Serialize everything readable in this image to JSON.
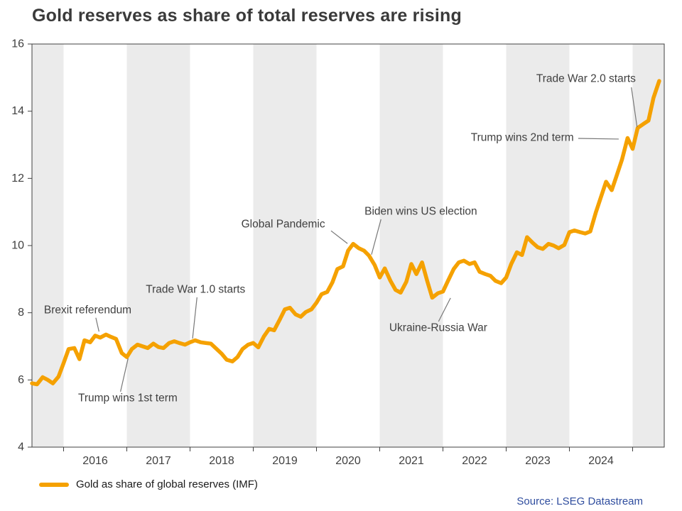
{
  "title": "Gold reserves as share of total reserves are rising",
  "legend": {
    "label": "Gold as share of global reserves (IMF)"
  },
  "source": "Source: LSEG Datastream",
  "colors": {
    "line": "#F5A100",
    "band": "#EBEBEB",
    "axis": "#404040",
    "annotation": "#404040",
    "annotation_line": "#777777",
    "source_text": "#2F4D9E",
    "title": "#3A3A3A",
    "background": "#FFFFFF"
  },
  "chart_data": {
    "type": "line",
    "title": "Gold reserves as share of total reserves are rising",
    "xlabel": "",
    "ylabel": "",
    "xlim": [
      2015.5,
      2025.5
    ],
    "ylim": [
      4,
      16
    ],
    "yticks": [
      4,
      6,
      8,
      10,
      12,
      14,
      16
    ],
    "xticks": [
      2016,
      2017,
      2018,
      2019,
      2020,
      2021,
      2022,
      2023,
      2024
    ],
    "grid": "off",
    "shaded_year_bands": "odd years shaded light gray",
    "legend_position": "bottom-left",
    "series": [
      {
        "name": "Gold as share of global reserves (IMF)",
        "color": "#F5A100",
        "points": [
          [
            2015.5,
            5.9
          ],
          [
            2015.58,
            5.87
          ],
          [
            2015.67,
            6.08
          ],
          [
            2015.75,
            6.0
          ],
          [
            2015.83,
            5.9
          ],
          [
            2015.92,
            6.1
          ],
          [
            2016.0,
            6.5
          ],
          [
            2016.08,
            6.92
          ],
          [
            2016.17,
            6.95
          ],
          [
            2016.25,
            6.62
          ],
          [
            2016.33,
            7.18
          ],
          [
            2016.42,
            7.12
          ],
          [
            2016.5,
            7.32
          ],
          [
            2016.58,
            7.26
          ],
          [
            2016.67,
            7.35
          ],
          [
            2016.75,
            7.28
          ],
          [
            2016.83,
            7.22
          ],
          [
            2016.92,
            6.8
          ],
          [
            2017.0,
            6.68
          ],
          [
            2017.08,
            6.92
          ],
          [
            2017.17,
            7.05
          ],
          [
            2017.25,
            7.0
          ],
          [
            2017.33,
            6.95
          ],
          [
            2017.42,
            7.08
          ],
          [
            2017.5,
            6.98
          ],
          [
            2017.58,
            6.95
          ],
          [
            2017.67,
            7.1
          ],
          [
            2017.75,
            7.15
          ],
          [
            2017.83,
            7.1
          ],
          [
            2017.92,
            7.05
          ],
          [
            2018.0,
            7.12
          ],
          [
            2018.08,
            7.18
          ],
          [
            2018.17,
            7.12
          ],
          [
            2018.25,
            7.1
          ],
          [
            2018.33,
            7.08
          ],
          [
            2018.42,
            6.92
          ],
          [
            2018.5,
            6.78
          ],
          [
            2018.58,
            6.6
          ],
          [
            2018.67,
            6.55
          ],
          [
            2018.75,
            6.68
          ],
          [
            2018.83,
            6.92
          ],
          [
            2018.92,
            7.05
          ],
          [
            2019.0,
            7.1
          ],
          [
            2019.08,
            6.97
          ],
          [
            2019.17,
            7.3
          ],
          [
            2019.25,
            7.52
          ],
          [
            2019.33,
            7.48
          ],
          [
            2019.42,
            7.8
          ],
          [
            2019.5,
            8.1
          ],
          [
            2019.58,
            8.15
          ],
          [
            2019.67,
            7.95
          ],
          [
            2019.75,
            7.88
          ],
          [
            2019.83,
            8.02
          ],
          [
            2019.92,
            8.1
          ],
          [
            2020.0,
            8.3
          ],
          [
            2020.08,
            8.55
          ],
          [
            2020.17,
            8.62
          ],
          [
            2020.25,
            8.9
          ],
          [
            2020.33,
            9.3
          ],
          [
            2020.42,
            9.38
          ],
          [
            2020.5,
            9.85
          ],
          [
            2020.58,
            10.05
          ],
          [
            2020.67,
            9.92
          ],
          [
            2020.75,
            9.85
          ],
          [
            2020.83,
            9.7
          ],
          [
            2020.92,
            9.42
          ],
          [
            2021.0,
            9.05
          ],
          [
            2021.08,
            9.32
          ],
          [
            2021.17,
            8.95
          ],
          [
            2021.25,
            8.68
          ],
          [
            2021.33,
            8.6
          ],
          [
            2021.42,
            8.92
          ],
          [
            2021.5,
            9.45
          ],
          [
            2021.58,
            9.15
          ],
          [
            2021.67,
            9.5
          ],
          [
            2021.75,
            8.95
          ],
          [
            2021.83,
            8.45
          ],
          [
            2021.92,
            8.58
          ],
          [
            2022.0,
            8.63
          ],
          [
            2022.08,
            8.95
          ],
          [
            2022.17,
            9.3
          ],
          [
            2022.25,
            9.5
          ],
          [
            2022.33,
            9.55
          ],
          [
            2022.42,
            9.45
          ],
          [
            2022.5,
            9.5
          ],
          [
            2022.58,
            9.22
          ],
          [
            2022.67,
            9.15
          ],
          [
            2022.75,
            9.1
          ],
          [
            2022.83,
            8.95
          ],
          [
            2022.92,
            8.88
          ],
          [
            2023.0,
            9.05
          ],
          [
            2023.08,
            9.45
          ],
          [
            2023.17,
            9.8
          ],
          [
            2023.25,
            9.72
          ],
          [
            2023.33,
            10.25
          ],
          [
            2023.42,
            10.08
          ],
          [
            2023.5,
            9.95
          ],
          [
            2023.58,
            9.9
          ],
          [
            2023.67,
            10.05
          ],
          [
            2023.75,
            10.0
          ],
          [
            2023.83,
            9.92
          ],
          [
            2023.92,
            10.02
          ],
          [
            2024.0,
            10.4
          ],
          [
            2024.08,
            10.45
          ],
          [
            2024.17,
            10.4
          ],
          [
            2024.25,
            10.36
          ],
          [
            2024.33,
            10.42
          ],
          [
            2024.42,
            11.0
          ],
          [
            2024.5,
            11.45
          ],
          [
            2024.58,
            11.9
          ],
          [
            2024.67,
            11.65
          ],
          [
            2024.75,
            12.1
          ],
          [
            2024.83,
            12.55
          ],
          [
            2024.92,
            13.2
          ],
          [
            2025.0,
            12.88
          ],
          [
            2025.08,
            13.5
          ],
          [
            2025.17,
            13.62
          ],
          [
            2025.25,
            13.72
          ],
          [
            2025.33,
            14.4
          ],
          [
            2025.42,
            14.9
          ]
        ]
      }
    ],
    "annotations": [
      {
        "label": "Brexit referendum",
        "text_xy": [
          2015.69,
          8.08
        ],
        "align": "start",
        "line": [
          [
            2016.51,
            7.85
          ],
          [
            2016.56,
            7.44
          ]
        ]
      },
      {
        "label": "Trump wins 1st term",
        "text_xy": [
          2016.23,
          5.46
        ],
        "align": "start",
        "line": [
          [
            2016.9,
            5.65
          ],
          [
            2017.02,
            6.64
          ]
        ]
      },
      {
        "label": "Trade War 1.0 starts",
        "text_xy": [
          2017.3,
          8.69
        ],
        "align": "start",
        "line": [
          [
            2018.11,
            8.46
          ],
          [
            2018.04,
            7.23
          ]
        ]
      },
      {
        "label": "Global Pandemic",
        "text_xy": [
          2018.81,
          10.63
        ],
        "align": "start",
        "line": [
          [
            2020.23,
            10.44
          ],
          [
            2020.49,
            10.06
          ]
        ]
      },
      {
        "label": "Biden wins US election",
        "text_xy": [
          2020.76,
          11.01
        ],
        "align": "start",
        "line": [
          [
            2021.02,
            10.78
          ],
          [
            2020.87,
            9.73
          ]
        ]
      },
      {
        "label": "Ukraine-Russia War",
        "text_xy": [
          2021.15,
          7.55
        ],
        "align": "start",
        "line": [
          [
            2021.93,
            7.74
          ],
          [
            2022.12,
            8.44
          ]
        ]
      },
      {
        "label": "Trump wins 2nd term",
        "text_xy": [
          2024.07,
          13.21
        ],
        "align": "end",
        "line": [
          [
            2024.14,
            13.19
          ],
          [
            2024.78,
            13.17
          ]
        ]
      },
      {
        "label": "Trade War 2.0 starts",
        "text_xy": [
          2025.05,
          14.97
        ],
        "align": "end",
        "line": [
          [
            2024.98,
            14.71
          ],
          [
            2025.07,
            13.53
          ]
        ]
      }
    ]
  }
}
